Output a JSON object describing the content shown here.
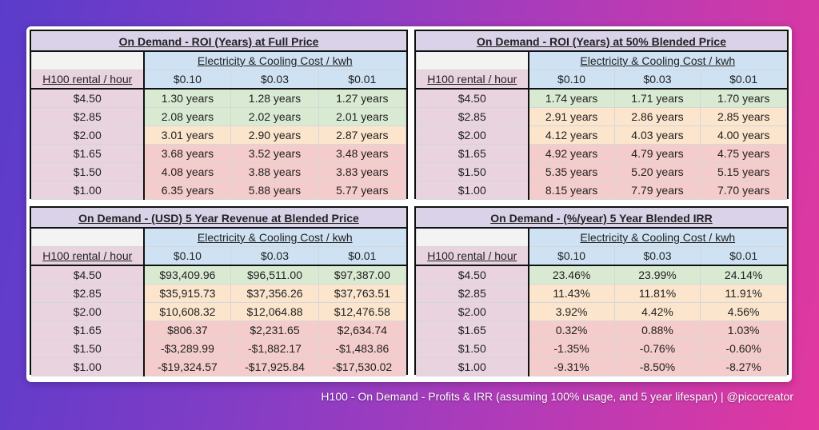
{
  "colors": {
    "title": "#d9d2e9",
    "header": "#cfe2f3",
    "row_label": "#e8d3df",
    "green": "#d9ead3",
    "orange": "#fce5cd",
    "red": "#f4cccc"
  },
  "tables": [
    {
      "title": "On Demand - ROI (Years) at Full Price",
      "group_header": "Electricity & Cooling Cost / kwh",
      "row_header": "H100 rental / hour",
      "columns": [
        "$0.10",
        "$0.03",
        "$0.01"
      ],
      "rows": [
        {
          "label": "$4.50",
          "tier": "g",
          "values": [
            "1.30 years",
            "1.28 years",
            "1.27 years"
          ]
        },
        {
          "label": "$2.85",
          "tier": "g",
          "values": [
            "2.08 years",
            "2.02 years",
            "2.01 years"
          ]
        },
        {
          "label": "$2.00",
          "tier": "o",
          "values": [
            "3.01 years",
            "2.90 years",
            "2.87 years"
          ]
        },
        {
          "label": "$1.65",
          "tier": "r",
          "values": [
            "3.68 years",
            "3.52 years",
            "3.48 years"
          ]
        },
        {
          "label": "$1.50",
          "tier": "r",
          "values": [
            "4.08 years",
            "3.88 years",
            "3.83 years"
          ]
        },
        {
          "label": "$1.00",
          "tier": "r",
          "values": [
            "6.35 years",
            "5.88 years",
            "5.77 years"
          ]
        }
      ]
    },
    {
      "title": "On Demand - ROI (Years) at 50% Blended Price",
      "group_header": "Electricity & Cooling Cost / kwh",
      "row_header": "H100 rental / hour",
      "columns": [
        "$0.10",
        "$0.03",
        "$0.01"
      ],
      "rows": [
        {
          "label": "$4.50",
          "tier": "g",
          "values": [
            "1.74 years",
            "1.71 years",
            "1.70 years"
          ]
        },
        {
          "label": "$2.85",
          "tier": "o",
          "values": [
            "2.91 years",
            "2.86 years",
            "2.85 years"
          ]
        },
        {
          "label": "$2.00",
          "tier": "o",
          "values": [
            "4.12 years",
            "4.03 years",
            "4.00 years"
          ]
        },
        {
          "label": "$1.65",
          "tier": "r",
          "values": [
            "4.92 years",
            "4.79 years",
            "4.75 years"
          ]
        },
        {
          "label": "$1.50",
          "tier": "r",
          "values": [
            "5.35 years",
            "5.20 years",
            "5.15 years"
          ]
        },
        {
          "label": "$1.00",
          "tier": "r",
          "values": [
            "8.15 years",
            "7.79 years",
            "7.70 years"
          ]
        }
      ]
    },
    {
      "title": "On Demand - (USD) 5 Year Revenue at Blended Price",
      "group_header": "Electricity & Cooling Cost / kwh",
      "row_header": "H100 rental / hour",
      "columns": [
        "$0.10",
        "$0.03",
        "$0.01"
      ],
      "rows": [
        {
          "label": "$4.50",
          "tier": "g",
          "values": [
            "$93,409.96",
            "$96,511.00",
            "$97,387.00"
          ]
        },
        {
          "label": "$2.85",
          "tier": "o",
          "values": [
            "$35,915.73",
            "$37,356.26",
            "$37,763.51"
          ]
        },
        {
          "label": "$2.00",
          "tier": "o",
          "values": [
            "$10,608.32",
            "$12,064.88",
            "$12,476.58"
          ]
        },
        {
          "label": "$1.65",
          "tier": "r",
          "values": [
            "$806.37",
            "$2,231.65",
            "$2,634.74"
          ]
        },
        {
          "label": "$1.50",
          "tier": "r",
          "values": [
            "-$3,289.99",
            "-$1,882.17",
            "-$1,483.86"
          ]
        },
        {
          "label": "$1.00",
          "tier": "r",
          "values": [
            "-$19,324.57",
            "-$17,925.84",
            "-$17,530.02"
          ]
        }
      ]
    },
    {
      "title": "On Demand - (%/year) 5 Year Blended IRR",
      "group_header": "Electricity & Cooling Cost / kwh",
      "row_header": "H100 rental / hour",
      "columns": [
        "$0.10",
        "$0.03",
        "$0.01"
      ],
      "rows": [
        {
          "label": "$4.50",
          "tier": "g",
          "values": [
            "23.46%",
            "23.99%",
            "24.14%"
          ]
        },
        {
          "label": "$2.85",
          "tier": "o",
          "values": [
            "11.43%",
            "11.81%",
            "11.91%"
          ]
        },
        {
          "label": "$2.00",
          "tier": "o",
          "values": [
            "3.92%",
            "4.42%",
            "4.56%"
          ]
        },
        {
          "label": "$1.65",
          "tier": "r",
          "values": [
            "0.32%",
            "0.88%",
            "1.03%"
          ]
        },
        {
          "label": "$1.50",
          "tier": "r",
          "values": [
            "-1.35%",
            "-0.76%",
            "-0.60%"
          ]
        },
        {
          "label": "$1.00",
          "tier": "r",
          "values": [
            "-9.31%",
            "-8.50%",
            "-8.27%"
          ]
        }
      ]
    }
  ],
  "caption": "H100 - On Demand - Profits & IRR (assuming 100% usage, and 5 year lifespan) | @picocreator"
}
